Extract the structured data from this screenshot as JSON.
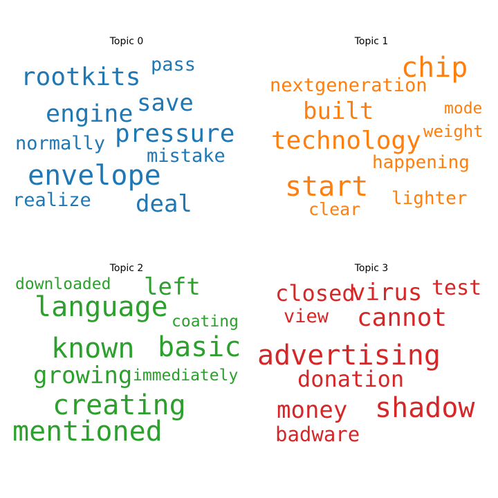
{
  "colors": {
    "topic0": "#1f77b4",
    "topic1": "#ff7f0e",
    "topic2": "#2ca02c",
    "topic3": "#d62728"
  },
  "topics": [
    {
      "title": "Topic 0",
      "words": [
        "pass",
        "rootkits",
        "save",
        "engine",
        "pressure",
        "normally",
        "mistake",
        "envelope",
        "realize",
        "deal"
      ]
    },
    {
      "title": "Topic 1",
      "words": [
        "chip",
        "nextgeneration",
        "built",
        "mode",
        "weight",
        "technology",
        "happening",
        "start",
        "lighter",
        "clear"
      ]
    },
    {
      "title": "Topic 2",
      "words": [
        "downloaded",
        "left",
        "language",
        "coating",
        "known",
        "basic",
        "growing",
        "immediately",
        "creating",
        "mentioned"
      ]
    },
    {
      "title": "Topic 3",
      "words": [
        "closed",
        "virus",
        "test",
        "view",
        "cannot",
        "advertising",
        "donation",
        "shadow",
        "money",
        "badware"
      ]
    }
  ]
}
